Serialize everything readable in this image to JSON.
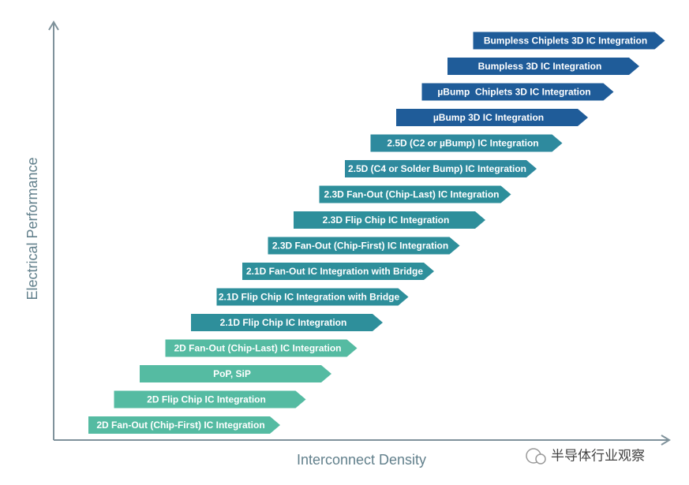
{
  "diagram": {
    "y_axis_label": "Electrical Performance",
    "x_axis_label": "Interconnect Density",
    "watermark": "半导体行业观察",
    "items": [
      {
        "label": "2D Fan-Out (Chip-First) IC Integration",
        "color": "#55bba2"
      },
      {
        "label": "2D Flip Chip IC Integration",
        "color": "#55bba2"
      },
      {
        "label": "PoP, SiP",
        "color": "#55bba2"
      },
      {
        "label": "2D Fan-Out (Chip-Last) IC Integration",
        "color": "#55bba2"
      },
      {
        "label": "2.1D Flip Chip IC Integration",
        "color": "#2e8f9b"
      },
      {
        "label": "2.1D Flip Chip IC Integration with Bridge",
        "color": "#2e8f9b"
      },
      {
        "label": "2.1D Fan-Out IC Integration with Bridge",
        "color": "#2e8f9b"
      },
      {
        "label": "2.3D Fan-Out (Chip-First) IC Integration",
        "color": "#2e8f9b"
      },
      {
        "label": "2.3D Flip Chip IC Integration",
        "color": "#2e8f9b"
      },
      {
        "label": "2.3D Fan-Out (Chip-Last) IC Integration",
        "color": "#2e8f9b"
      },
      {
        "label": "2.5D (C4 or Solder Bump) IC Integration",
        "color": "#2e8a9e"
      },
      {
        "label": "2.5D (C2 or µBump) IC Integration",
        "color": "#2e8a9e"
      },
      {
        "label": "µBump 3D IC Integration",
        "color": "#1f5c99"
      },
      {
        "label": "µBump  Chiplets 3D IC Integration",
        "color": "#1f5c99"
      },
      {
        "label": "Bumpless 3D IC Integration",
        "color": "#1f5c99"
      },
      {
        "label": "Bumpless Chiplets 3D IC Integration",
        "color": "#1f5c99"
      }
    ]
  }
}
